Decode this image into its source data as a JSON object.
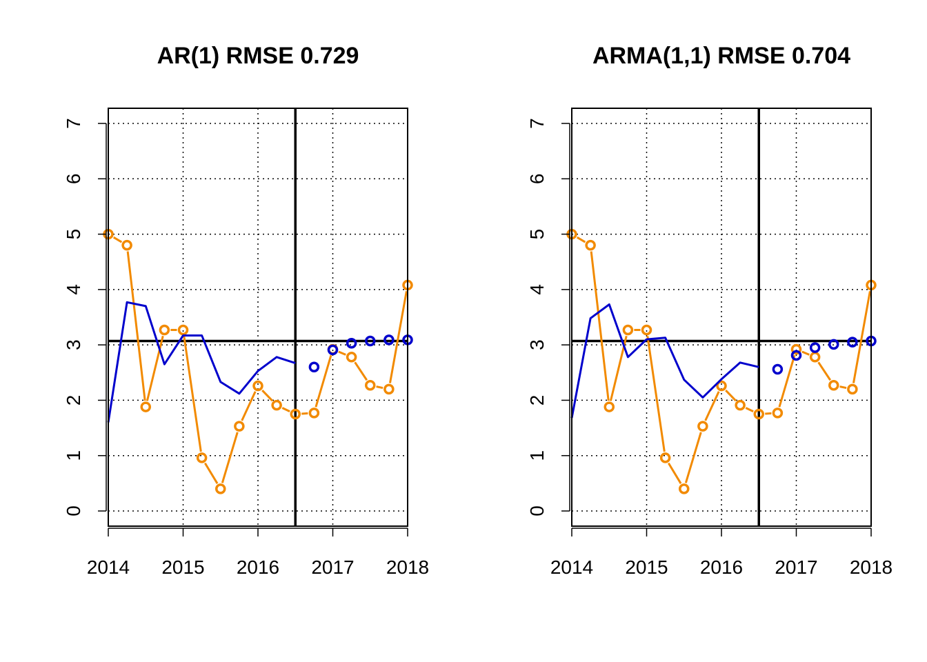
{
  "chart_data": [
    {
      "type": "line",
      "title": "AR(1) RMSE 0.729",
      "xlabel": "",
      "ylabel": "",
      "xlim": [
        2014.0,
        2018.0
      ],
      "ylim": [
        0,
        7
      ],
      "x_ticks": [
        "2014",
        "2015",
        "2016",
        "2017",
        "2018"
      ],
      "y_ticks": [
        "0",
        "1",
        "2",
        "3",
        "4",
        "5",
        "6",
        "7"
      ],
      "grid": true,
      "reference_lines": {
        "horizontal_y": 3.07,
        "vertical_x": 2016.5
      },
      "colors": {
        "actual": "#f28a00",
        "forecast": "#0000cc",
        "reference": "#000000"
      },
      "series": [
        {
          "role": "actual",
          "x": [
            2014.0,
            2014.25,
            2014.5,
            2014.75,
            2015.0,
            2015.25,
            2015.5,
            2015.75,
            2016.0,
            2016.25,
            2016.5,
            2016.75,
            2017.0,
            2017.25,
            2017.5,
            2017.75,
            2018.0
          ],
          "values": [
            5.0,
            4.8,
            1.88,
            3.27,
            3.27,
            0.96,
            0.4,
            1.53,
            2.26,
            1.91,
            1.75,
            1.77,
            2.92,
            2.78,
            2.27,
            2.2,
            4.08
          ]
        },
        {
          "role": "fitted",
          "x": [
            2014.0,
            2014.25,
            2014.5,
            2014.75,
            2015.0,
            2015.25,
            2015.5,
            2015.75,
            2016.0,
            2016.25,
            2016.5
          ],
          "values": [
            1.6,
            3.77,
            3.7,
            2.65,
            3.17,
            3.17,
            2.33,
            2.12,
            2.53,
            2.78,
            2.67
          ]
        },
        {
          "role": "forecast",
          "x": [
            2016.75,
            2017.0,
            2017.25,
            2017.5,
            2017.75,
            2018.0
          ],
          "values": [
            2.6,
            2.91,
            3.03,
            3.07,
            3.09,
            3.09
          ]
        }
      ]
    },
    {
      "type": "line",
      "title": "ARMA(1,1) RMSE 0.704",
      "xlabel": "",
      "ylabel": "",
      "xlim": [
        2014.0,
        2018.0
      ],
      "ylim": [
        0,
        7
      ],
      "x_ticks": [
        "2014",
        "2015",
        "2016",
        "2017",
        "2018"
      ],
      "y_ticks": [
        "0",
        "1",
        "2",
        "3",
        "4",
        "5",
        "6",
        "7"
      ],
      "grid": true,
      "reference_lines": {
        "horizontal_y": 3.07,
        "vertical_x": 2016.5
      },
      "colors": {
        "actual": "#f28a00",
        "forecast": "#0000cc",
        "reference": "#000000"
      },
      "series": [
        {
          "role": "actual",
          "x": [
            2014.0,
            2014.25,
            2014.5,
            2014.75,
            2015.0,
            2015.25,
            2015.5,
            2015.75,
            2016.0,
            2016.25,
            2016.5,
            2016.75,
            2017.0,
            2017.25,
            2017.5,
            2017.75,
            2018.0
          ],
          "values": [
            5.0,
            4.8,
            1.88,
            3.27,
            3.27,
            0.96,
            0.4,
            1.53,
            2.26,
            1.91,
            1.75,
            1.77,
            2.92,
            2.78,
            2.27,
            2.2,
            4.08
          ]
        },
        {
          "role": "fitted",
          "x": [
            2014.0,
            2014.25,
            2014.5,
            2014.75,
            2015.0,
            2015.25,
            2015.5,
            2015.75,
            2016.0,
            2016.25,
            2016.5
          ],
          "values": [
            1.68,
            3.48,
            3.73,
            2.78,
            3.1,
            3.13,
            2.37,
            2.05,
            2.38,
            2.68,
            2.6
          ]
        },
        {
          "role": "forecast",
          "x": [
            2016.75,
            2017.0,
            2017.25,
            2017.5,
            2017.75,
            2018.0
          ],
          "values": [
            2.56,
            2.81,
            2.95,
            3.01,
            3.05,
            3.07
          ]
        }
      ]
    }
  ]
}
